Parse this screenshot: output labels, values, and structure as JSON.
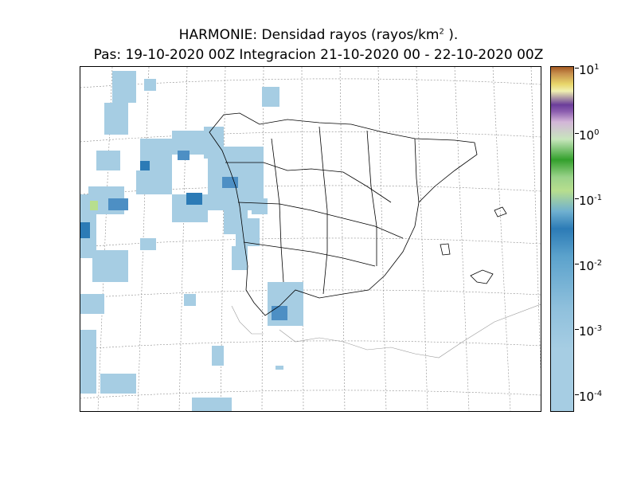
{
  "title": {
    "line1_prefix": "HARMONIE: Densidad rayos  (rayos/km",
    "line1_sup": "2",
    "line1_suffix": " ).",
    "line2": "Pas: 19-10-2020 00Z Integracion 21-10-2020 00 - 22-10-2020 00Z"
  },
  "colorbar": {
    "scale": "log",
    "ticks": [
      {
        "base": "10",
        "exp": "1"
      },
      {
        "base": "10",
        "exp": "0"
      },
      {
        "base": "10",
        "exp": "-1"
      },
      {
        "base": "10",
        "exp": "-2"
      },
      {
        "base": "10",
        "exp": "-3"
      },
      {
        "base": "10",
        "exp": "-4"
      }
    ],
    "colors": [
      "#a6cde3",
      "#2c7bb6",
      "#b7de8e",
      "#33a02c",
      "#d3b6d8",
      "#6a3d9a",
      "#f0f0b0",
      "#a45a23"
    ]
  }
}
